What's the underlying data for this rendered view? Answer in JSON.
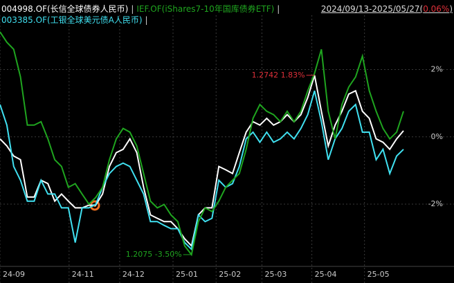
{
  "chart_data": {
    "type": "line",
    "legend_separator": "|",
    "date_range": "2024/09/13-2025/05/27",
    "change": "0.06%",
    "change_color": "#e0303a",
    "brackets": [
      "(",
      ")"
    ],
    "series": [
      {
        "name": "004998.OF(长信全球债券人民币)",
        "color": "#ffffff",
        "values": [
          -0.06,
          -0.27,
          -0.57,
          -0.68,
          -1.79,
          -1.79,
          -1.29,
          -1.39,
          -1.91,
          -1.7,
          -1.91,
          -2.11,
          -2.11,
          -2.03,
          -2.03,
          -1.7,
          -0.88,
          -0.47,
          -0.37,
          -0.06,
          -0.47,
          -1.5,
          -2.32,
          -2.42,
          -2.52,
          -2.52,
          -2.73,
          -3.03,
          -3.24,
          -2.32,
          -2.11,
          -2.11,
          -0.88,
          -0.98,
          -1.09,
          -0.47,
          0.14,
          0.45,
          0.35,
          0.55,
          0.35,
          0.45,
          0.66,
          0.45,
          0.66,
          1.17,
          1.83,
          0.76,
          -0.27,
          0.35,
          0.76,
          1.27,
          1.37,
          0.76,
          0.55,
          -0.06,
          -0.16,
          -0.37,
          -0.06,
          0.18
        ]
      },
      {
        "name": "IEF.OF(iShares7-10年国库债券ETF)",
        "color": "#1fa51f",
        "values": [
          3.12,
          2.81,
          2.6,
          1.78,
          0.35,
          0.35,
          0.45,
          -0.06,
          -0.68,
          -0.88,
          -1.5,
          -1.39,
          -1.7,
          -2.0,
          -1.8,
          -1.5,
          -0.68,
          -0.06,
          0.25,
          0.14,
          -0.27,
          -1.09,
          -1.91,
          -2.11,
          -2.01,
          -2.32,
          -2.52,
          -3.24,
          -3.5,
          -2.52,
          -2.11,
          -2.22,
          -1.91,
          -1.5,
          -1.29,
          -1.09,
          -0.37,
          0.55,
          0.96,
          0.76,
          0.66,
          0.45,
          0.76,
          0.45,
          0.76,
          1.37,
          1.89,
          2.6,
          0.76,
          -0.06,
          0.96,
          1.48,
          1.78,
          2.4,
          1.37,
          0.76,
          0.25,
          -0.06,
          0.14,
          0.76
        ]
      },
      {
        "name": "003385.OF(工银全球美元债A人民币)",
        "color": "#40e0f0",
        "values": [
          0.96,
          0.35,
          -0.88,
          -1.29,
          -1.91,
          -1.91,
          -1.29,
          -1.7,
          -1.7,
          -2.11,
          -2.11,
          -3.14,
          -2.11,
          -2.11,
          -2.01,
          -1.5,
          -1.09,
          -0.88,
          -0.78,
          -0.88,
          -1.29,
          -1.7,
          -2.52,
          -2.52,
          -2.63,
          -2.73,
          -2.73,
          -3.14,
          -3.34,
          -2.32,
          -2.52,
          -2.42,
          -1.29,
          -1.5,
          -1.39,
          -0.88,
          -0.06,
          0.14,
          -0.16,
          0.14,
          -0.16,
          -0.06,
          0.14,
          -0.06,
          0.25,
          0.66,
          1.37,
          0.45,
          -0.68,
          -0.06,
          0.25,
          0.76,
          0.96,
          0.14,
          0.14,
          -0.68,
          -0.37,
          -1.09,
          -0.57,
          -0.37
        ]
      }
    ],
    "annotations": [
      {
        "text": "1.2742 1.83%",
        "color": "#e0303a",
        "series": 0,
        "index": 46
      },
      {
        "text": "1.2075 -3.50%",
        "color": "#1fa51f",
        "series": 1,
        "index": 28
      }
    ],
    "xlim": [
      0,
      59
    ],
    "xticks": [
      {
        "value": 0,
        "label": "24-09"
      },
      {
        "value": 10.1,
        "label": "24-11"
      },
      {
        "value": 17.5,
        "label": "24-12"
      },
      {
        "value": 25.3,
        "label": "25-01"
      },
      {
        "value": 31.6,
        "label": "25-02"
      },
      {
        "value": 38.3,
        "label": "25-03"
      },
      {
        "value": 45.6,
        "label": "25-04"
      },
      {
        "value": 53.3,
        "label": "25-05"
      }
    ],
    "ylim": [
      -3.85,
      3.45
    ],
    "yticks": [
      {
        "value": 2,
        "label": "2%"
      },
      {
        "value": 0,
        "label": "0%"
      },
      {
        "value": -2,
        "label": "-2%"
      }
    ],
    "grid": true
  }
}
